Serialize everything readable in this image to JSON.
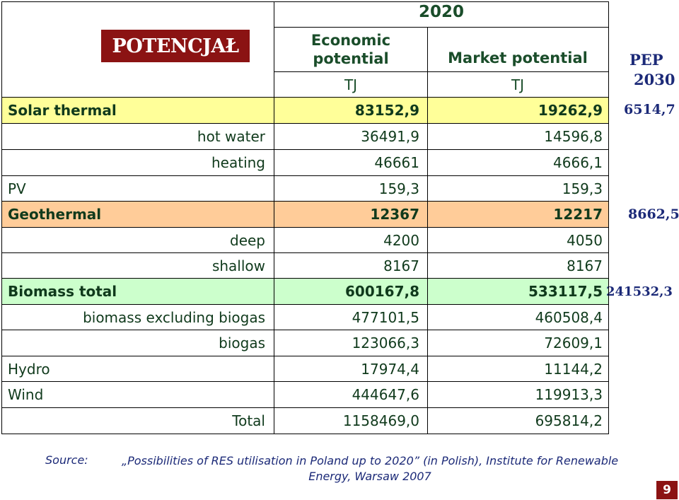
{
  "title": "POTENCJAŁ",
  "header": {
    "year": "2020",
    "economic_potential": "Economic potential",
    "market_potential": "Market potential",
    "unit_econ": "TJ",
    "unit_market": "TJ",
    "pep_label": "PEP",
    "pep_year": "2030"
  },
  "rows": [
    {
      "name": "Solar thermal",
      "econ": "83152,9",
      "market": "19262,9",
      "pep": "6514,7"
    },
    {
      "name": "hot water",
      "econ": "36491,9",
      "market": "14596,8"
    },
    {
      "name": "heating",
      "econ": "46661",
      "market": "4666,1"
    },
    {
      "name": "PV",
      "econ": "159,3",
      "market": "159,3"
    },
    {
      "name": "Geothermal",
      "econ": "12367",
      "market": "12217",
      "pep": "8662,5"
    },
    {
      "name": "deep",
      "econ": "4200",
      "market": "4050"
    },
    {
      "name": "shallow",
      "econ": "8167",
      "market": "8167"
    },
    {
      "name": "Biomass total",
      "econ": "600167,8",
      "market": "533117,5",
      "pep": "241532,3"
    },
    {
      "name": "biomass excluding biogas",
      "econ": "477101,5",
      "market": "460508,4"
    },
    {
      "name": "biogas",
      "econ": "123066,3",
      "market": "72609,1"
    },
    {
      "name": "Hydro",
      "econ": "17974,4",
      "market": "11144,2"
    },
    {
      "name": "Wind",
      "econ": "444647,6",
      "market": "119913,3"
    },
    {
      "name": "Total",
      "econ": "1158469,0",
      "market": "695814,2"
    }
  ],
  "source_label": "Source:",
  "source_text": "„Possibilities of RES utilisation in Poland up to 2020” (in Polish), Institute for Renewable Energy, Warsaw 2007",
  "page_number": "9",
  "colors": {
    "title_bg": "#8b1313",
    "solar_row": "#ffff99",
    "geo_row": "#ffcc99",
    "biomass_row": "#ccffcc",
    "pep_text": "#1c2a78"
  }
}
